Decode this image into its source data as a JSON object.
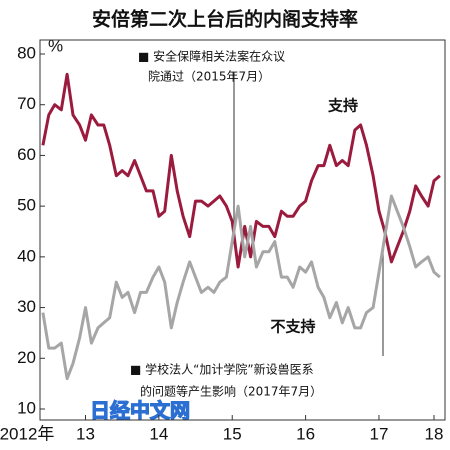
{
  "chart_data": {
    "type": "line",
    "title": "安倍第二次上台后的内阁支持率",
    "y_label": "%",
    "annotations": [
      "■ 安全保障相关法案在众议",
      "院通过（2015年7月）",
      "■ 学校法人“加计学院”新设兽医系",
      "的问题等产生影响（2017年7月）"
    ],
    "watermark": "日经中文网",
    "x": [
      2012.92,
      2013.0,
      2013.08,
      2013.17,
      2013.25,
      2013.33,
      2013.42,
      2013.5,
      2013.58,
      2013.67,
      2013.75,
      2013.83,
      2013.92,
      2014.0,
      2014.08,
      2014.17,
      2014.25,
      2014.33,
      2014.42,
      2014.5,
      2014.58,
      2014.67,
      2014.75,
      2014.83,
      2014.92,
      2015.0,
      2015.08,
      2015.17,
      2015.25,
      2015.33,
      2015.42,
      2015.5,
      2015.58,
      2015.67,
      2015.75,
      2015.83,
      2015.92,
      2016.0,
      2016.08,
      2016.17,
      2016.25,
      2016.33,
      2016.42,
      2016.5,
      2016.58,
      2016.67,
      2016.75,
      2016.83,
      2016.92,
      2017.0,
      2017.08,
      2017.17,
      2017.25,
      2017.33,
      2017.42,
      2017.5,
      2017.58,
      2017.67,
      2017.75,
      2017.83,
      2017.92,
      2018.0,
      2018.08,
      2018.17,
      2018.25,
      2018.33
    ],
    "series": [
      {
        "name": "支持",
        "color": "#9b1b3e",
        "values": [
          62,
          68,
          70,
          69,
          76,
          68,
          66,
          63,
          68,
          66,
          66,
          62,
          56,
          57,
          56,
          59,
          56,
          53,
          53,
          48,
          49,
          60,
          53,
          48,
          44,
          51,
          51,
          50,
          51,
          52,
          50,
          47,
          38,
          46,
          40,
          47,
          46,
          46,
          44,
          49,
          48,
          48,
          50,
          51,
          55,
          58,
          58,
          62,
          58,
          59,
          58,
          65,
          66,
          62,
          56,
          49,
          45,
          39,
          42,
          45,
          49,
          54,
          52,
          50,
          55,
          56
        ]
      },
      {
        "name": "不支持",
        "color": "#a6a6a6",
        "values": [
          29,
          22,
          22,
          23,
          16,
          19,
          24,
          30,
          23,
          26,
          27,
          28,
          35,
          32,
          33,
          29,
          33,
          33,
          36,
          38,
          35,
          26,
          31,
          35,
          39,
          36,
          33,
          34,
          33,
          35,
          36,
          43,
          50,
          40,
          46,
          38,
          41,
          41,
          43,
          36,
          36,
          34,
          38,
          37,
          39,
          34,
          32,
          28,
          31,
          27,
          30,
          26,
          26,
          29,
          30,
          37,
          44,
          52,
          49,
          46,
          42,
          38,
          39,
          40,
          37,
          36
        ]
      }
    ],
    "xlim": [
      2012.88,
      2018.4
    ],
    "xticks": [
      {
        "value": 2012.5,
        "label": "2012年"
      },
      {
        "value": 2013.5,
        "label": "13"
      },
      {
        "value": 2014.5,
        "label": "14"
      },
      {
        "value": 2015.5,
        "label": "15"
      },
      {
        "value": 2016.5,
        "label": "16"
      },
      {
        "value": 2017.5,
        "label": "17"
      },
      {
        "value": 2018.25,
        "label": "18"
      }
    ],
    "ylim": [
      10,
      80
    ],
    "yticks": [
      10,
      20,
      30,
      40,
      50,
      60,
      70,
      80
    ]
  }
}
